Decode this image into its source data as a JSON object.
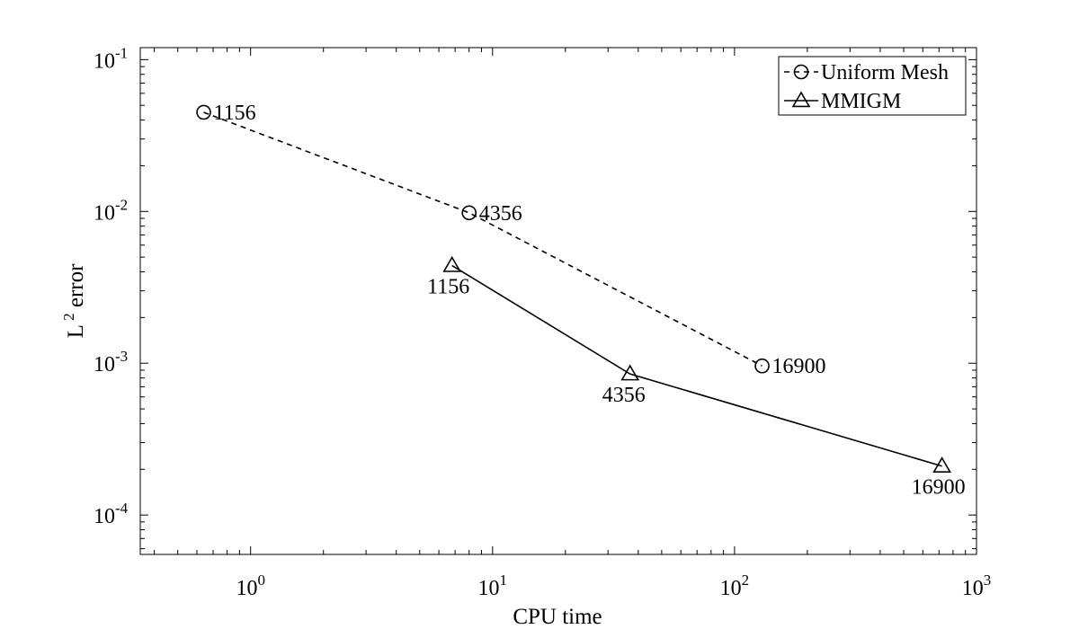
{
  "chart_data": {
    "type": "line",
    "xscale": "log",
    "yscale": "log",
    "xlabel": "CPU time",
    "ylabel": "L^2 error",
    "ylabel_main": "L",
    "ylabel_sup": "2",
    "ylabel_rest": " error",
    "xlim": [
      0.35,
      1000
    ],
    "ylim": [
      5.5e-05,
      0.12
    ],
    "xticks": [
      {
        "value": 1,
        "base": "10",
        "exp": "0"
      },
      {
        "value": 10,
        "base": "10",
        "exp": "1"
      },
      {
        "value": 100,
        "base": "10",
        "exp": "2"
      },
      {
        "value": 1000,
        "base": "10",
        "exp": "3"
      }
    ],
    "yticks": [
      {
        "value": 0.0001,
        "base": "10",
        "exp": "-4"
      },
      {
        "value": 0.001,
        "base": "10",
        "exp": "-3"
      },
      {
        "value": 0.01,
        "base": "10",
        "exp": "-2"
      },
      {
        "value": 0.1,
        "base": "10",
        "exp": "-1"
      }
    ],
    "grid": false,
    "legend_position": "top-right",
    "series": [
      {
        "name": "Uniform Mesh",
        "marker": "circle",
        "linestyle": "dashed",
        "color": "#000000",
        "x": [
          0.64,
          8.0,
          130
        ],
        "y": [
          0.045,
          0.0098,
          0.00096
        ],
        "labels": [
          "1156",
          "4356",
          "16900"
        ]
      },
      {
        "name": "MMIGM",
        "marker": "triangle",
        "linestyle": "solid",
        "color": "#000000",
        "x": [
          6.8,
          37,
          720
        ],
        "y": [
          0.0044,
          0.00085,
          0.00021
        ],
        "labels": [
          "1156",
          "4356",
          "16900"
        ]
      }
    ]
  }
}
